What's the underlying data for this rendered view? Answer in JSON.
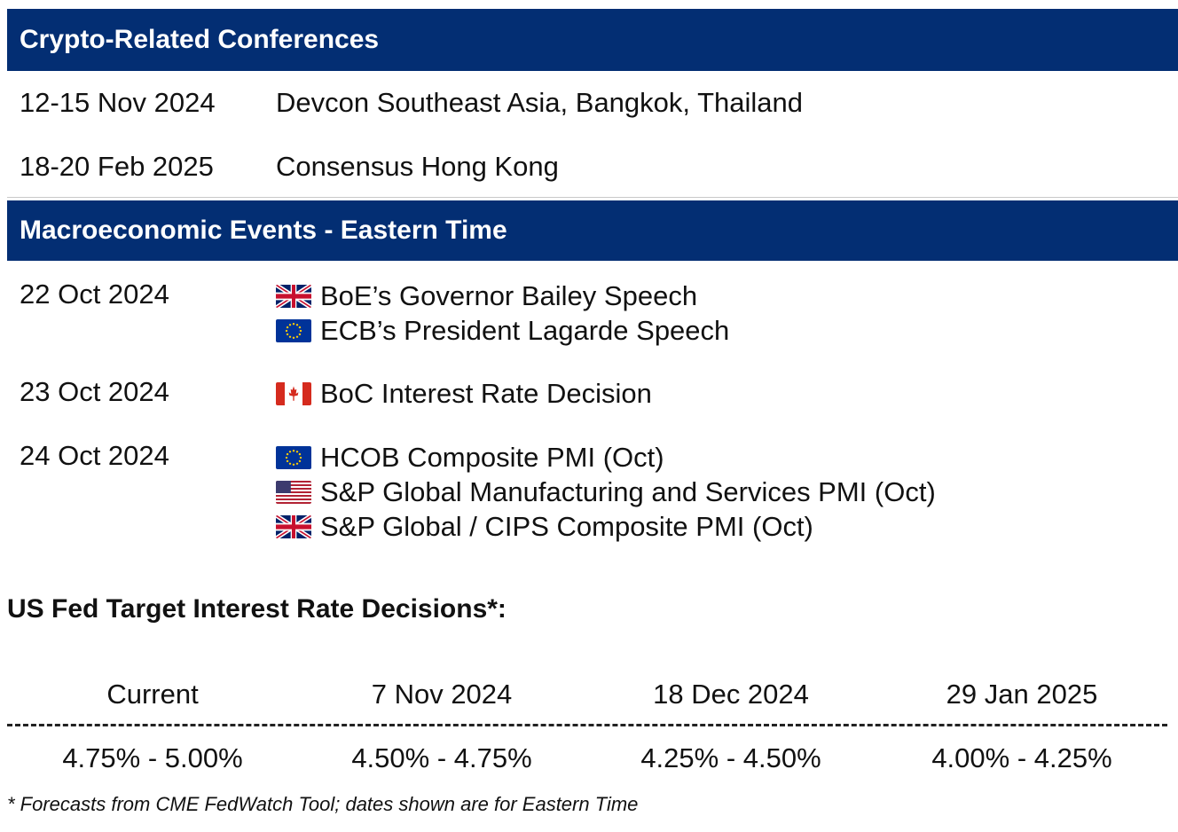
{
  "crypto": {
    "header": "Crypto-Related Conferences",
    "rows": [
      {
        "date": "12-15 Nov 2024",
        "event": "Devcon Southeast Asia, Bangkok, Thailand"
      },
      {
        "date": "18-20 Feb 2025",
        "event": "Consensus Hong Kong"
      }
    ]
  },
  "macro": {
    "header": "Macroeconomic Events - Eastern Time",
    "groups": [
      {
        "date": "22 Oct 2024",
        "events": [
          {
            "flag": "uk-flag-icon",
            "text": "BoE’s Governor Bailey Speech"
          },
          {
            "flag": "eu-flag-icon",
            "text": "ECB’s President Lagarde Speech"
          }
        ]
      },
      {
        "date": "23 Oct 2024",
        "events": [
          {
            "flag": "canada-flag-icon",
            "text": "BoC Interest Rate Decision"
          }
        ]
      },
      {
        "date": "24 Oct 2024",
        "events": [
          {
            "flag": "eu-flag-icon",
            "text": "HCOB Composite PMI (Oct)"
          },
          {
            "flag": "us-flag-icon",
            "text": "S&P Global Manufacturing and Services PMI (Oct)"
          },
          {
            "flag": "uk-flag-icon",
            "text": "S&P Global / CIPS Composite PMI (Oct)"
          }
        ]
      }
    ]
  },
  "fed": {
    "title": "US Fed Target Interest Rate Decisions*:",
    "columns": [
      {
        "label": "Current",
        "value": "4.75% - 5.00%"
      },
      {
        "label": "7 Nov 2024",
        "value": "4.50% - 4.75%"
      },
      {
        "label": "18 Dec 2024",
        "value": "4.25% - 4.50%"
      },
      {
        "label": "29 Jan 2025",
        "value": "4.00% - 4.25%"
      }
    ],
    "footnote": "* Forecasts from CME FedWatch Tool; dates shown are for Eastern Time"
  },
  "colors": {
    "header_bg": "#032e73",
    "header_text": "#ffffff"
  }
}
